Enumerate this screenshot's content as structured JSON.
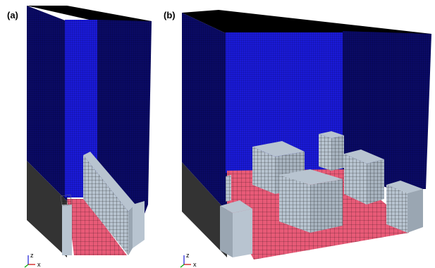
{
  "panels": {
    "a": {
      "label": "(a)"
    },
    "b": {
      "label": "(b)"
    }
  },
  "axes": {
    "x": "x",
    "z": "z"
  },
  "colors": {
    "wall_mesh": "#0a0a66",
    "back_wall": "#1a1ad9",
    "floor": "#e85a77",
    "obstacle": "#b8c4d0",
    "side_block": "#9aa6b2",
    "grid_line": "#000000"
  }
}
